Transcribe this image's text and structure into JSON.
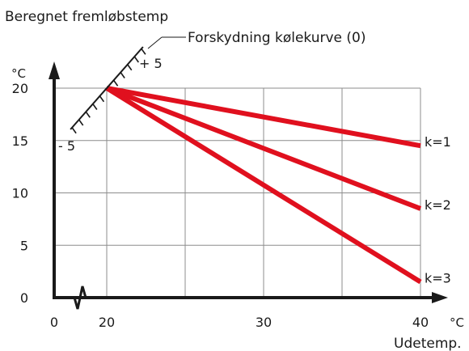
{
  "chart_data": {
    "type": "line",
    "title": "Beregnet fremløbstemp",
    "ylabel_unit": "°C",
    "xlabel_unit": "°C",
    "xlabel": "Udetemp.",
    "x_ticks": [
      "0",
      "20",
      "30",
      "40"
    ],
    "y_ticks": [
      "0",
      "5",
      "10",
      "15",
      "20"
    ],
    "xlim": [
      20,
      40
    ],
    "ylim": [
      0,
      20
    ],
    "x_axis_break_between": [
      0,
      20
    ],
    "grid": true,
    "series": [
      {
        "name": "k=1",
        "x": [
          20,
          40
        ],
        "y": [
          20,
          14.5
        ]
      },
      {
        "name": "k=2",
        "x": [
          20,
          40
        ],
        "y": [
          20,
          8.5
        ]
      },
      {
        "name": "k=3",
        "x": [
          20,
          40
        ],
        "y": [
          20,
          1.5
        ]
      }
    ],
    "offset_scale": {
      "label": "Forskydning kølekurve (0)",
      "plus_label": "+ 5",
      "minus_label": "- 5"
    },
    "colors": {
      "series": "#e0101e",
      "axes": "#1a1a1a",
      "grid": "#8c8c8c"
    }
  }
}
